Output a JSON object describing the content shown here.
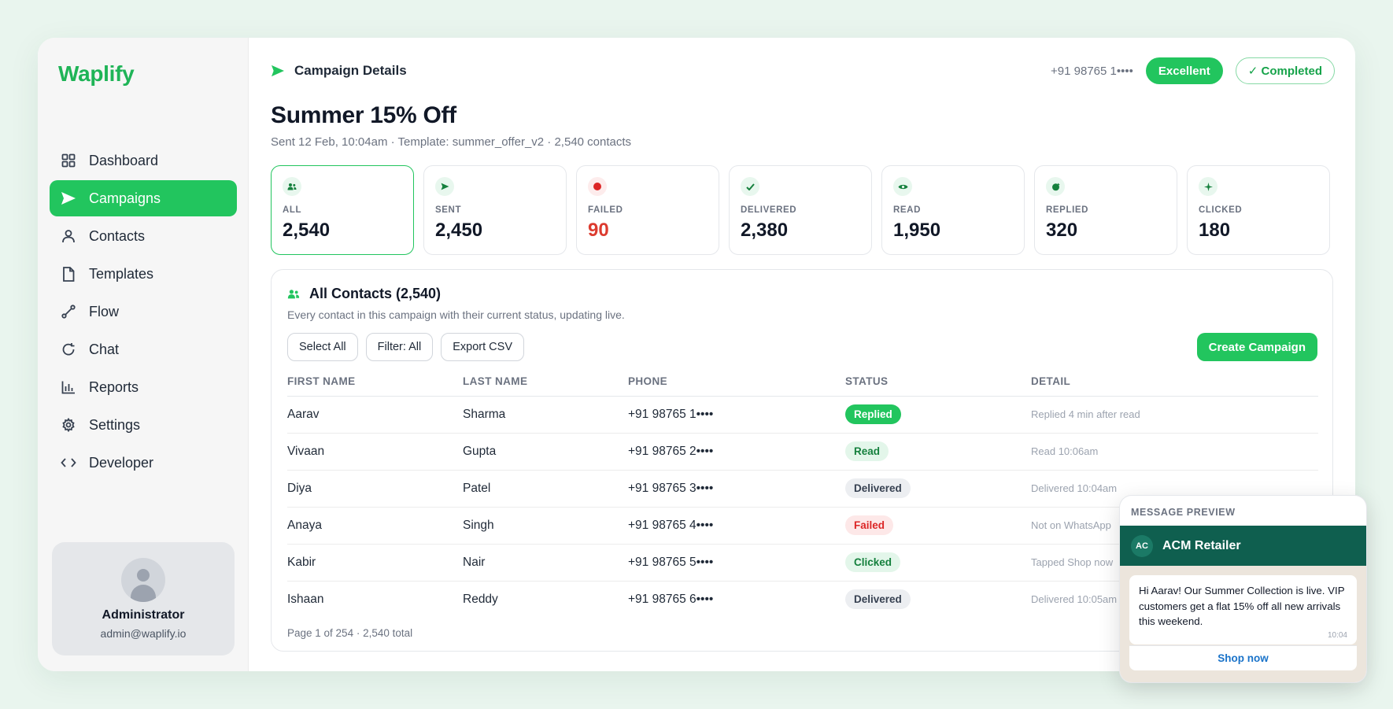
{
  "app": {
    "brand": "Waplify"
  },
  "sidebar": {
    "items": [
      {
        "label": "Dashboard",
        "icon": "grid-icon",
        "active": false
      },
      {
        "label": "Campaigns",
        "icon": "send-icon",
        "active": true
      },
      {
        "label": "Contacts",
        "icon": "user-icon",
        "active": false
      },
      {
        "label": "Templates",
        "icon": "file-icon",
        "active": false
      },
      {
        "label": "Flow",
        "icon": "flow-icon",
        "active": false
      },
      {
        "label": "Chat",
        "icon": "refresh-icon",
        "active": false
      },
      {
        "label": "Reports",
        "icon": "bar-chart-icon",
        "active": false
      },
      {
        "label": "Settings",
        "icon": "gear-icon",
        "active": false
      },
      {
        "label": "Developer",
        "icon": "code-icon",
        "active": false
      }
    ],
    "user": {
      "name": "Administrator",
      "email": "admin@waplify.io"
    }
  },
  "header": {
    "title": "Campaign Details",
    "phone": "+91 98765 1••••",
    "quality": "Excellent",
    "status": "✓ Completed"
  },
  "campaign": {
    "title": "Summer 15% Off",
    "subtitle": "Sent 12 Feb, 10:04am · Template: summer_offer_v2 · 2,540 contacts"
  },
  "stats": [
    {
      "label": "ALL",
      "value": "2,540"
    },
    {
      "label": "SENT",
      "value": "2,450"
    },
    {
      "label": "FAILED",
      "value": "90"
    },
    {
      "label": "DELIVERED",
      "value": "2,380"
    },
    {
      "label": "READ",
      "value": "1,950"
    },
    {
      "label": "REPLIED",
      "value": "320"
    },
    {
      "label": "CLICKED",
      "value": "180"
    }
  ],
  "contacts": {
    "title": "All Contacts (2,540)",
    "subtitle": "Every contact in this campaign with their current status, updating live.",
    "actions": {
      "select_all": "Select All",
      "filter": "Filter: All",
      "export": "Export CSV",
      "create": "Create Campaign"
    },
    "columns": [
      "FIRST NAME",
      "LAST NAME",
      "PHONE",
      "STATUS",
      "DETAIL"
    ],
    "rows": [
      {
        "first": "Aarav",
        "last": "Sharma",
        "phone": "+91 98765 1••••",
        "status": "Replied",
        "detail": "Replied 4 min after read"
      },
      {
        "first": "Vivaan",
        "last": "Gupta",
        "phone": "+91 98765 2••••",
        "status": "Read",
        "detail": "Read 10:06am"
      },
      {
        "first": "Diya",
        "last": "Patel",
        "phone": "+91 98765 3••••",
        "status": "Delivered",
        "detail": "Delivered 10:04am"
      },
      {
        "first": "Anaya",
        "last": "Singh",
        "phone": "+91 98765 4••••",
        "status": "Failed",
        "detail": "Not on WhatsApp"
      },
      {
        "first": "Kabir",
        "last": "Nair",
        "phone": "+91 98765 5••••",
        "status": "Clicked",
        "detail": "Tapped Shop now"
      },
      {
        "first": "Ishaan",
        "last": "Reddy",
        "phone": "+91 98765 6••••",
        "status": "Delivered",
        "detail": "Delivered 10:05am"
      }
    ],
    "pagination": "Page 1 of 254 · 2,540 total"
  },
  "preview": {
    "label": "MESSAGE PREVIEW",
    "avatar": "AC",
    "sender": "ACM Retailer",
    "message": "Hi Aarav! Our Summer Collection is live. VIP customers get a flat 15% off all new arrivals this weekend.",
    "time": "10:04",
    "cta": "Shop now"
  },
  "colors": {
    "accent": "#22c55e",
    "brand": "#1fb457",
    "failed": "#dc3b2f",
    "preview_header": "#0f5f4f"
  }
}
